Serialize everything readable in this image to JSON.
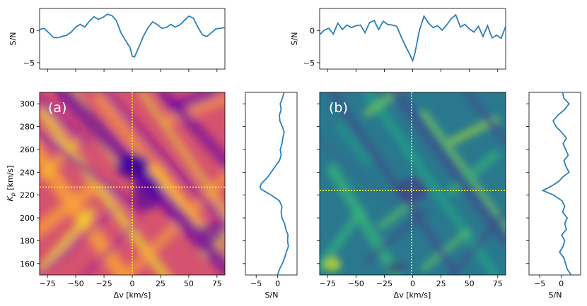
{
  "chart_data": [
    {
      "id": "a",
      "type": "heatmap",
      "panel_label": "(a)",
      "colormap": "plasma",
      "xlabel": "Δv [km/s]",
      "ylabel": "K_p [km/s]",
      "xlim": [
        -82,
        82
      ],
      "ylim": [
        150,
        310
      ],
      "xticks": [
        -75,
        -50,
        -25,
        0,
        25,
        50,
        75
      ],
      "xtick_labels": [
        "−75",
        "−50",
        "−25",
        "0",
        "25",
        "50",
        "75"
      ],
      "yticks": [
        160,
        180,
        200,
        220,
        240,
        260,
        280,
        300
      ],
      "marker": {
        "dv": 0,
        "kp": 227
      },
      "top_panel": {
        "type": "line",
        "ylabel": "S/N",
        "yticks": [
          0,
          -5
        ],
        "ytick_labels": [
          "0",
          "−5"
        ],
        "ylim": [
          -6,
          3.5
        ],
        "x": [
          -82,
          -78,
          -74,
          -70,
          -66,
          -62,
          -58,
          -54,
          -50,
          -46,
          -42,
          -38,
          -34,
          -30,
          -26,
          -22,
          -18,
          -14,
          -10,
          -6,
          -2,
          0,
          2,
          6,
          10,
          14,
          18,
          22,
          26,
          30,
          34,
          38,
          42,
          46,
          50,
          54,
          58,
          62,
          66,
          70,
          74,
          78,
          82
        ],
        "values": [
          0.2,
          0.4,
          -0.3,
          -1.0,
          -1.1,
          -0.9,
          -0.7,
          -0.2,
          0.6,
          1.0,
          0.6,
          1.5,
          2.2,
          1.8,
          2.1,
          2.6,
          2.4,
          1.6,
          -0.3,
          -1.5,
          -2.6,
          -4.0,
          -4.1,
          -2.5,
          -0.8,
          0.5,
          1.4,
          1.0,
          0.4,
          0.5,
          1.0,
          0.6,
          0.9,
          1.6,
          2.3,
          2.0,
          0.6,
          -0.6,
          -0.9,
          -0.3,
          0.3,
          0.4,
          0.5
        ]
      },
      "side_panel": {
        "type": "line",
        "xlabel": "S/N",
        "xticks": [
          -5,
          0
        ],
        "xtick_labels": [
          "−5",
          "0"
        ],
        "xlim": [
          -7.5,
          4.5
        ],
        "kp": [
          150,
          155,
          160,
          165,
          170,
          175,
          180,
          185,
          190,
          195,
          200,
          205,
          210,
          215,
          220,
          225,
          227,
          230,
          235,
          240,
          245,
          250,
          255,
          260,
          265,
          270,
          275,
          280,
          285,
          290,
          295,
          300,
          305,
          310
        ],
        "values": [
          0.0,
          0.4,
          1.1,
          1.6,
          2.0,
          2.5,
          2.3,
          2.4,
          1.9,
          1.6,
          1.0,
          0.8,
          1.0,
          0.4,
          -1.5,
          -3.8,
          -4.1,
          -3.8,
          -2.5,
          -1.5,
          -0.6,
          0.4,
          0.8,
          0.6,
          1.0,
          1.2,
          1.5,
          1.1,
          0.5,
          0.4,
          0.8,
          0.6,
          1.1,
          1.5
        ]
      }
    },
    {
      "id": "b",
      "type": "heatmap",
      "panel_label": "(b)",
      "colormap": "viridis",
      "xlabel": "Δv [km/s]",
      "xlim": [
        -82,
        82
      ],
      "ylim": [
        150,
        310
      ],
      "xticks": [
        -75,
        -50,
        -25,
        0,
        25,
        50,
        75
      ],
      "xtick_labels": [
        "−75",
        "−50",
        "−25",
        "0",
        "25",
        "50",
        "75"
      ],
      "marker": {
        "dv": -1,
        "kp": 224
      },
      "top_panel": {
        "type": "line",
        "ylabel": "S/N",
        "yticks": [
          0,
          -5
        ],
        "ytick_labels": [
          "0",
          "−5"
        ],
        "ylim": [
          -6,
          3.5
        ],
        "x": [
          -82,
          -78,
          -74,
          -70,
          -66,
          -62,
          -58,
          -54,
          -50,
          -46,
          -42,
          -38,
          -34,
          -30,
          -26,
          -22,
          -18,
          -14,
          -10,
          -6,
          -2,
          0,
          2,
          6,
          10,
          14,
          18,
          22,
          26,
          30,
          34,
          38,
          42,
          46,
          50,
          54,
          58,
          62,
          66,
          70,
          74,
          78,
          82
        ],
        "values": [
          -0.6,
          0.1,
          0.4,
          -0.5,
          1.2,
          0.2,
          0.9,
          0.5,
          0.8,
          0.9,
          -0.3,
          1.3,
          1.6,
          0.2,
          1.5,
          1.0,
          0.9,
          0.7,
          -1.0,
          -2.5,
          -3.9,
          -4.7,
          -3.5,
          0.1,
          2.3,
          1.2,
          0.5,
          0.8,
          0.1,
          0.9,
          1.9,
          2.5,
          0.6,
          1.0,
          0.3,
          -0.2,
          0.7,
          -0.9,
          0.8,
          -1.1,
          -0.7,
          -1.2,
          0.7
        ]
      },
      "side_panel": {
        "type": "line",
        "xlabel": "S/N",
        "xticks": [
          -5,
          0
        ],
        "xtick_labels": [
          "−5",
          "0"
        ],
        "xlim": [
          -7.5,
          4.5
        ],
        "kp": [
          150,
          155,
          160,
          165,
          170,
          175,
          180,
          185,
          190,
          195,
          200,
          205,
          210,
          215,
          220,
          224,
          228,
          232,
          236,
          240,
          245,
          250,
          255,
          260,
          265,
          270,
          275,
          280,
          285,
          290,
          295,
          300,
          305,
          310
        ],
        "values": [
          2.3,
          1.4,
          1.0,
          0.6,
          -0.4,
          0.4,
          0.8,
          0.1,
          1.2,
          0.8,
          1.4,
          0.3,
          0.8,
          0.2,
          -1.8,
          -4.3,
          -2.2,
          -0.6,
          0.4,
          1.8,
          1.1,
          0.6,
          1.6,
          1.0,
          0.4,
          1.2,
          0.1,
          -1.2,
          -1.9,
          -0.8,
          0.8,
          1.8,
          0.6,
          0.3
        ]
      }
    }
  ],
  "shared": {
    "kp_label_main": "K",
    "kp_label_sub": "p",
    "kp_label_units": " [km/s]",
    "left_ytick_labels": [
      "160",
      "180",
      "200",
      "220",
      "240",
      "260",
      "280",
      "300"
    ]
  }
}
